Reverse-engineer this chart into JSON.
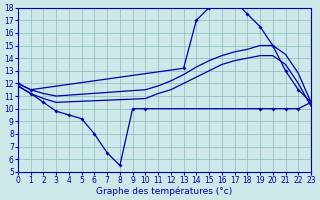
{
  "xlabel": "Graphe des températures (°c)",
  "bg_color": "#cce8e8",
  "line_color": "#0000aa",
  "grid_color": "#88bbbb",
  "xmin": 0,
  "xmax": 23,
  "ymin": 5,
  "ymax": 18,
  "series": [
    {
      "name": "top_arch",
      "x": [
        0,
        1,
        13,
        14,
        15,
        16,
        17,
        18,
        19,
        20,
        21,
        22,
        23
      ],
      "y": [
        12,
        11.5,
        13.2,
        17.0,
        18.0,
        18.5,
        18.5,
        17.5,
        16.5,
        15.0,
        13.0,
        11.5,
        10.5
      ],
      "markers": true
    },
    {
      "name": "upper_linear",
      "x": [
        0,
        1,
        2,
        3,
        10,
        11,
        12,
        13,
        14,
        15,
        16,
        17,
        18,
        19,
        20,
        21,
        22,
        23
      ],
      "y": [
        12.0,
        11.5,
        11.2,
        11.0,
        11.5,
        11.8,
        12.2,
        12.7,
        13.3,
        13.8,
        14.2,
        14.5,
        14.7,
        15.0,
        15.0,
        14.3,
        12.8,
        10.5
      ],
      "markers": false
    },
    {
      "name": "lower_linear",
      "x": [
        0,
        1,
        2,
        3,
        10,
        11,
        12,
        13,
        14,
        15,
        16,
        17,
        18,
        19,
        20,
        21,
        22,
        23
      ],
      "y": [
        11.8,
        11.2,
        10.8,
        10.5,
        10.8,
        11.2,
        11.5,
        12.0,
        12.5,
        13.0,
        13.5,
        13.8,
        14.0,
        14.2,
        14.2,
        13.5,
        12.0,
        10.2
      ],
      "markers": false
    },
    {
      "name": "min_dip",
      "x": [
        0,
        1,
        2,
        3,
        4,
        5,
        6,
        7,
        8,
        9,
        10,
        19,
        20,
        21,
        22,
        23
      ],
      "y": [
        11.8,
        11.2,
        10.5,
        9.8,
        9.5,
        9.2,
        8.0,
        6.5,
        5.5,
        10.0,
        10.0,
        10.0,
        10.0,
        10.0,
        10.0,
        10.5
      ],
      "markers": true
    }
  ],
  "xticks": [
    0,
    1,
    2,
    3,
    4,
    5,
    6,
    7,
    8,
    9,
    10,
    11,
    12,
    13,
    14,
    15,
    16,
    17,
    18,
    19,
    20,
    21,
    22,
    23
  ],
  "yticks": [
    5,
    6,
    7,
    8,
    9,
    10,
    11,
    12,
    13,
    14,
    15,
    16,
    17,
    18
  ],
  "tick_fontsize": 5.5,
  "xlabel_fontsize": 6.5,
  "linewidth": 0.9,
  "markersize": 2.0
}
